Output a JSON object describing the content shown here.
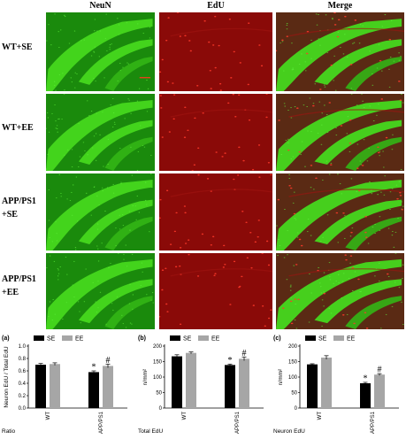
{
  "figure": {
    "column_headers": [
      "NeuN",
      "EdU",
      "Merge"
    ],
    "row_labels": [
      [
        "WT+SE"
      ],
      [
        "WT+EE"
      ],
      [
        "APP/PS1",
        "+SE"
      ],
      [
        "APP/PS1",
        "+EE"
      ]
    ],
    "colors": {
      "neun": "#39c21a",
      "edu": "#d01414",
      "merge_bg": "#5a2a14",
      "se_bar": "#000000",
      "ee_bar": "#a6a6a6"
    }
  },
  "chart_data": [
    {
      "type": "bar",
      "panel_label": "(a)",
      "bottom_label": "Ratio",
      "ylabel": "Neuron EdU / Total EdU",
      "categories": [
        "WT",
        "APP/PS1"
      ],
      "legend": [
        "SE",
        "EE"
      ],
      "series": [
        {
          "name": "SE",
          "values": [
            0.7,
            0.58
          ],
          "errors": [
            0.02,
            0.02
          ],
          "marks": [
            "",
            "*"
          ]
        },
        {
          "name": "EE",
          "values": [
            0.71,
            0.68
          ],
          "errors": [
            0.02,
            0.03
          ],
          "marks": [
            "",
            "#"
          ]
        }
      ],
      "ylim": [
        0.0,
        1.0
      ],
      "yticks": [
        "0.0",
        "0.2",
        "0.4",
        "0.6",
        "0.8",
        "1.0"
      ]
    },
    {
      "type": "bar",
      "panel_label": "(b)",
      "bottom_label": "Total EdU",
      "ylabel": "n/mm²",
      "categories": [
        "WT",
        "APP/PS1"
      ],
      "legend": [
        "SE",
        "EE"
      ],
      "series": [
        {
          "name": "SE",
          "values": [
            167,
            139
          ],
          "errors": [
            5,
            3
          ],
          "marks": [
            "",
            "*"
          ]
        },
        {
          "name": "EE",
          "values": [
            178,
            159
          ],
          "errors": [
            3,
            6
          ],
          "marks": [
            "",
            "#"
          ]
        }
      ],
      "ylim": [
        0,
        200
      ],
      "yticks": [
        "0",
        "50",
        "100",
        "150",
        "200"
      ]
    },
    {
      "type": "bar",
      "panel_label": "(c)",
      "bottom_label": "Neuron EdU",
      "ylabel": "n/mm²",
      "categories": [
        "WT",
        "APP/PS1"
      ],
      "legend": [
        "SE",
        "EE"
      ],
      "series": [
        {
          "name": "SE",
          "values": [
            141,
            80
          ],
          "errors": [
            2,
            3
          ],
          "marks": [
            "",
            "*"
          ]
        },
        {
          "name": "EE",
          "values": [
            163,
            108
          ],
          "errors": [
            6,
            3
          ],
          "marks": [
            "",
            "#"
          ]
        }
      ],
      "ylim": [
        0,
        200
      ],
      "yticks": [
        "0",
        "50",
        "100",
        "150",
        "200"
      ]
    }
  ]
}
